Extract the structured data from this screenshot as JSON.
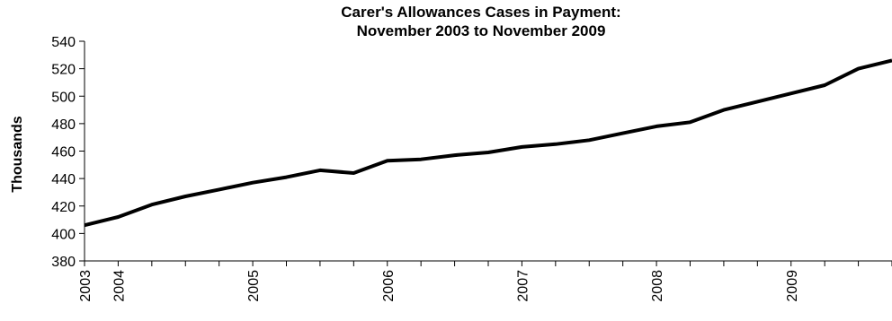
{
  "chart_data": {
    "type": "line",
    "title_lines": [
      "Carer's Allowances Cases in Payment:",
      "November 2003 to November 2009"
    ],
    "xlabel": "",
    "ylabel": "Thousands",
    "ylim": [
      380,
      540
    ],
    "y_ticks": [
      "380",
      "400",
      "420",
      "440",
      "460",
      "480",
      "500",
      "520",
      "540"
    ],
    "x_tick_labels": [
      "2003",
      "2004",
      "2005",
      "2006",
      "2007",
      "2008",
      "2009"
    ],
    "grid": false,
    "legend": "none",
    "series": [
      {
        "values": [
          406,
          412,
          421,
          427,
          432,
          437,
          441,
          446,
          444,
          453,
          454,
          457,
          459,
          463,
          465,
          468,
          473,
          478,
          481,
          490,
          496,
          502,
          508,
          520,
          526
        ]
      }
    ]
  }
}
